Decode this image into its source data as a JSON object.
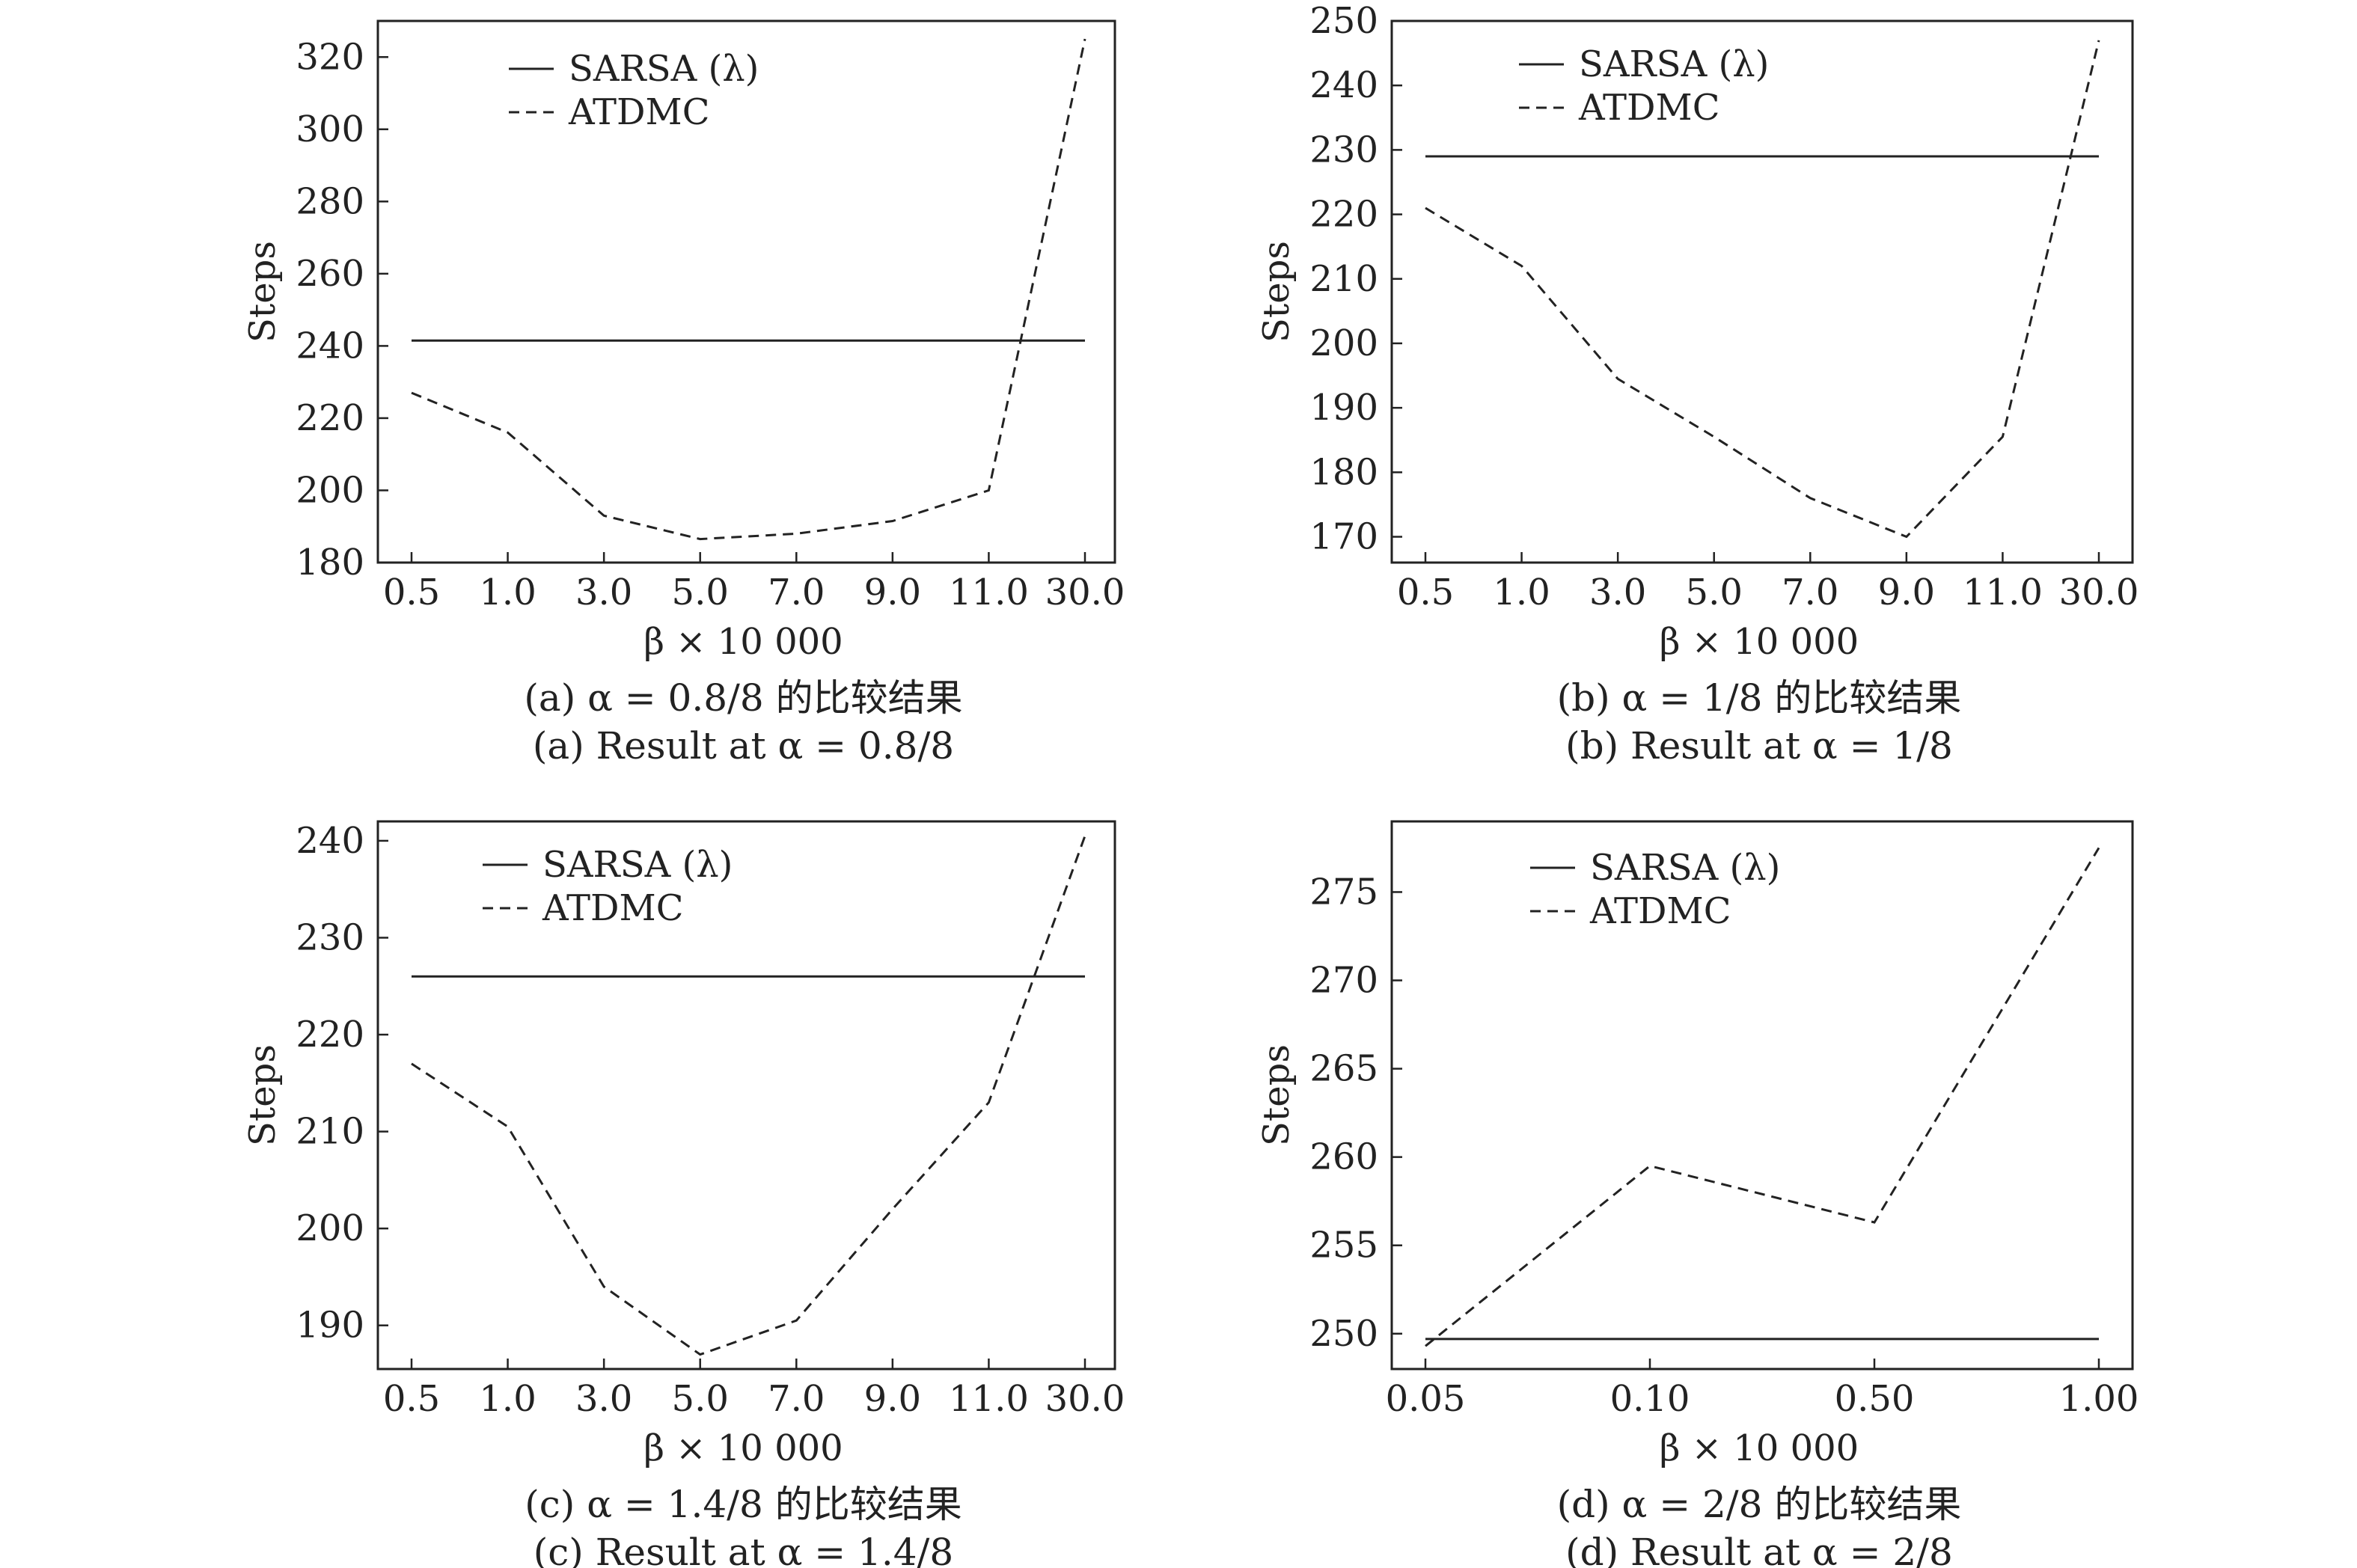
{
  "chart_data": [
    {
      "type": "line",
      "ylabel": "Steps",
      "xlabel": "β × 10 000",
      "categories": [
        "0.5",
        "1.0",
        "3.0",
        "5.0",
        "7.0",
        "9.0",
        "11.0",
        "30.0"
      ],
      "ylim": [
        180,
        330
      ],
      "yticks": [
        180,
        200,
        220,
        240,
        260,
        280,
        300,
        320
      ],
      "series": [
        {
          "name": "SARSA (λ)",
          "style": "solid",
          "values": [
            241.5,
            241.5,
            241.5,
            241.5,
            241.5,
            241.5,
            241.5,
            241.5
          ]
        },
        {
          "name": "ATDMC",
          "style": "dashed",
          "values": [
            227,
            216,
            193,
            186.5,
            188,
            191.5,
            200,
            325
          ]
        }
      ],
      "caption_cn": "(a) α = 0.8/8 的比较结果",
      "caption_en": "(a) Result at  α =  0.8/8"
    },
    {
      "type": "line",
      "ylabel": "Steps",
      "xlabel": "β × 10 000",
      "categories": [
        "0.5",
        "1.0",
        "3.0",
        "5.0",
        "7.0",
        "9.0",
        "11.0",
        "30.0"
      ],
      "ylim": [
        166,
        250
      ],
      "yticks": [
        170,
        180,
        190,
        200,
        210,
        220,
        230,
        240,
        250
      ],
      "series": [
        {
          "name": "SARSA (λ)",
          "style": "solid",
          "values": [
            229,
            229,
            229,
            229,
            229,
            229,
            229,
            229
          ]
        },
        {
          "name": "ATDMC",
          "style": "dashed",
          "values": [
            221,
            212,
            194.5,
            185.5,
            176,
            170,
            185.5,
            247
          ]
        }
      ],
      "caption_cn": "(b) α = 1/8 的比较结果",
      "caption_en": "(b) Result at  α = 1/8"
    },
    {
      "type": "line",
      "ylabel": "Steps",
      "xlabel": "β × 10 000",
      "categories": [
        "0.5",
        "1.0",
        "3.0",
        "5.0",
        "7.0",
        "9.0",
        "11.0",
        "30.0"
      ],
      "ylim": [
        185.5,
        242
      ],
      "yticks": [
        190,
        200,
        210,
        220,
        230,
        240
      ],
      "series": [
        {
          "name": "SARSA (λ)",
          "style": "solid",
          "values": [
            226,
            226,
            226,
            226,
            226,
            226,
            226,
            226
          ]
        },
        {
          "name": "ATDMC",
          "style": "dashed",
          "values": [
            217,
            210.5,
            194,
            187,
            190.5,
            202,
            213,
            240.5
          ]
        }
      ],
      "caption_cn": "(c) α = 1.4/8 的比较结果",
      "caption_en": "(c) Result at  α = 1.4/8"
    },
    {
      "type": "line",
      "ylabel": "Steps",
      "xlabel": "β × 10 000",
      "categories": [
        "0.05",
        "0.10",
        "0.50",
        "1.00"
      ],
      "ylim": [
        248,
        279
      ],
      "yticks": [
        250,
        255,
        260,
        265,
        270,
        275
      ],
      "series": [
        {
          "name": "SARSA (λ)",
          "style": "solid",
          "values": [
            249.7,
            249.7,
            249.7,
            249.7
          ]
        },
        {
          "name": "ATDMC",
          "style": "dashed",
          "values": [
            249.3,
            259.5,
            256.3,
            277.5
          ]
        }
      ],
      "caption_cn": "(d) α = 2/8 的比较结果",
      "caption_en": "(d) Result at  α = 2/8"
    }
  ],
  "colors": {
    "line": "#222222",
    "frame": "#222222",
    "background": "#ffffff"
  }
}
